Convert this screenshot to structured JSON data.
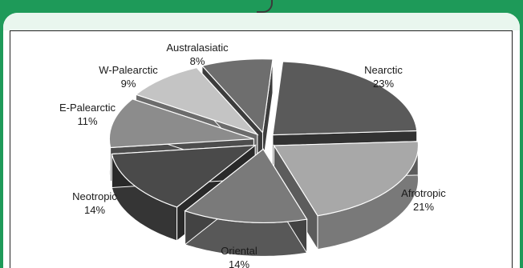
{
  "chart_data": {
    "type": "pie",
    "title": "",
    "categories": [
      "Nearctic",
      "Afrotropic",
      "Oriental",
      "Neotropic",
      "E-Palearctic",
      "W-Palearctic",
      "Australasiatic"
    ],
    "values": [
      23,
      21,
      14,
      14,
      11,
      9,
      8
    ],
    "value_labels": [
      "23%",
      "21%",
      "14%",
      "14%",
      "11%",
      "9%",
      "8%"
    ],
    "style": "3d exploded",
    "colors": [
      "#5a5a5a",
      "#a8a8a8",
      "#7a7a7a",
      "#4a4a4a",
      "#8c8c8c",
      "#c4c4c4",
      "#6e6e6e"
    ],
    "legend": "none"
  }
}
